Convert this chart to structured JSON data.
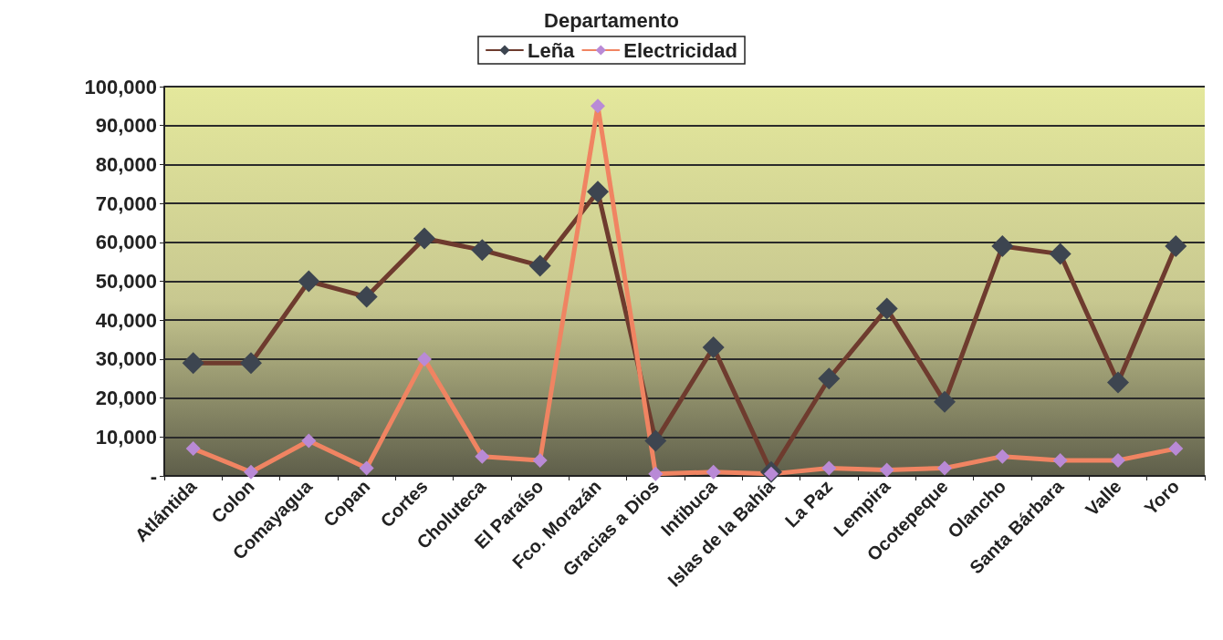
{
  "chart_data": {
    "type": "line",
    "title": "Departamento",
    "categories": [
      "Atlántida",
      "Colon",
      "Comayagua",
      "Copan",
      "Cortes",
      "Choluteca",
      "El Paraíso",
      "Fco. Morazán",
      "Gracias a Dios",
      "Intibuca",
      "Islas de la Bahía",
      "La Paz",
      "Lempira",
      "Ocotepeque",
      "Olancho",
      "Santa Bárbara",
      "Valle",
      "Yoro"
    ],
    "series": [
      {
        "name": "Leña",
        "color": "#6e3b2e",
        "values": [
          29000,
          29000,
          50000,
          46000,
          61000,
          58000,
          54000,
          73000,
          9000,
          33000,
          1000,
          25000,
          43000,
          19000,
          59000,
          57000,
          24000,
          59000
        ]
      },
      {
        "name": "Electricidad",
        "color": "#f08462",
        "values": [
          7000,
          1000,
          9000,
          2000,
          30000,
          5000,
          4000,
          95000,
          500,
          1000,
          500,
          2000,
          1500,
          2000,
          5000,
          4000,
          4000,
          7000
        ]
      }
    ],
    "ylim": [
      0,
      100000
    ],
    "yticks": [
      {
        "value": 0,
        "label": "-"
      },
      {
        "value": 10000,
        "label": "10,000"
      },
      {
        "value": 20000,
        "label": "20,000"
      },
      {
        "value": 30000,
        "label": "30,000"
      },
      {
        "value": 40000,
        "label": "40,000"
      },
      {
        "value": 50000,
        "label": "50,000"
      },
      {
        "value": 60000,
        "label": "60,000"
      },
      {
        "value": 70000,
        "label": "70,000"
      },
      {
        "value": 80000,
        "label": "80,000"
      },
      {
        "value": 90000,
        "label": "90,000"
      },
      {
        "value": 100000,
        "label": "100,000"
      }
    ],
    "grid": "y",
    "legend": "top",
    "marker": "diamond",
    "line_style": "solid"
  }
}
